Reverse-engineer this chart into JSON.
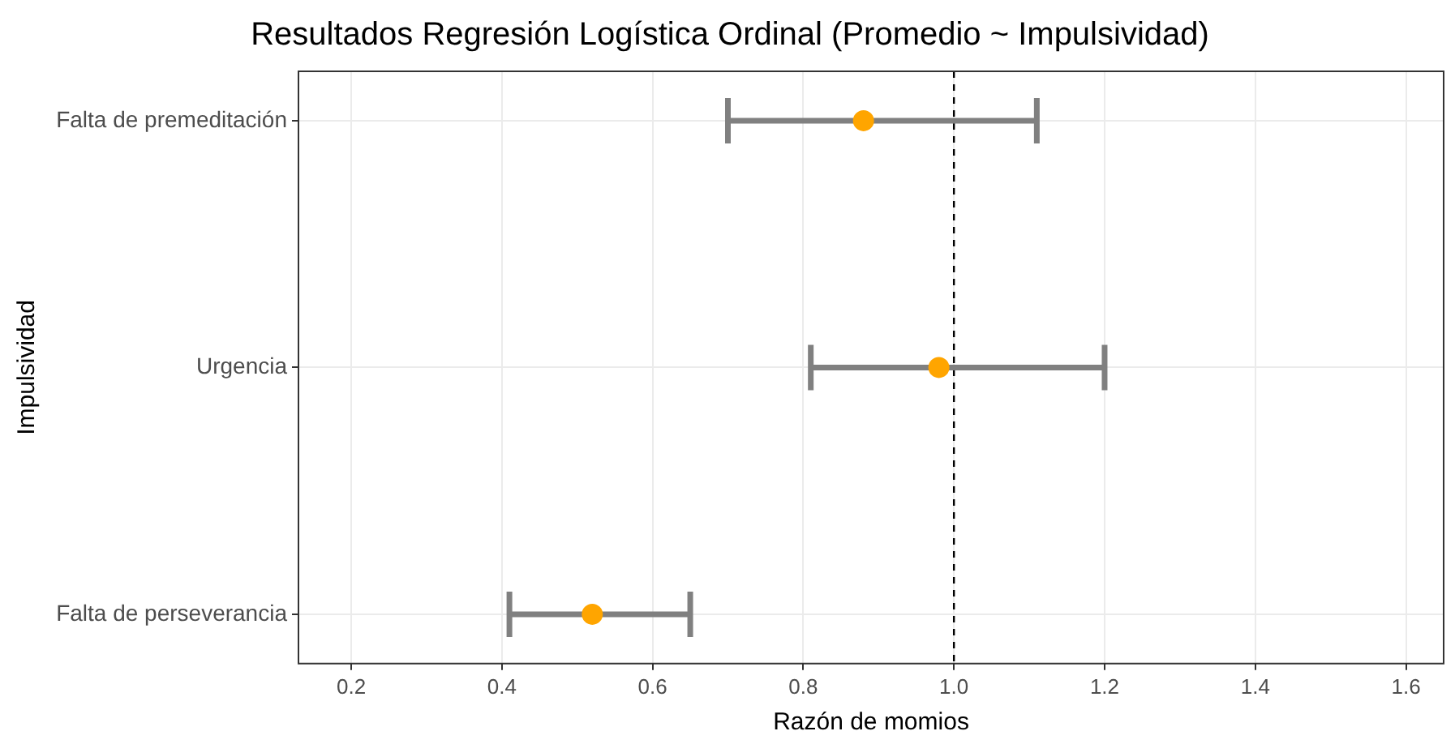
{
  "chart_data": {
    "type": "scatter",
    "title": "Resultados Regresión Logística Ordinal (Promedio ~ Impulsividad)",
    "xlabel": "Razón de momios",
    "ylabel": "Impulsividad",
    "orientation": "horizontal",
    "categories": [
      "Falta de premeditación",
      "Urgencia",
      "Falta de perseverancia"
    ],
    "series": [
      {
        "color": "#ffa500",
        "values": [
          0.88,
          0.98,
          0.52
        ],
        "errors": [
          [
            0.7,
            1.11
          ],
          [
            0.81,
            1.2
          ],
          [
            0.41,
            0.65
          ]
        ]
      }
    ],
    "xlim": [
      0.13,
      1.65
    ],
    "xticks": [
      0.2,
      0.4,
      0.6,
      0.8,
      {
        "value": 1.0,
        "label": "1.0"
      },
      1.2,
      1.4,
      1.6
    ],
    "ref_lines": [
      {
        "axis": "x",
        "value": 1.0,
        "color": "#000000",
        "line_style": "dashed"
      }
    ],
    "grid": true,
    "legend": false,
    "marker": "circle"
  }
}
